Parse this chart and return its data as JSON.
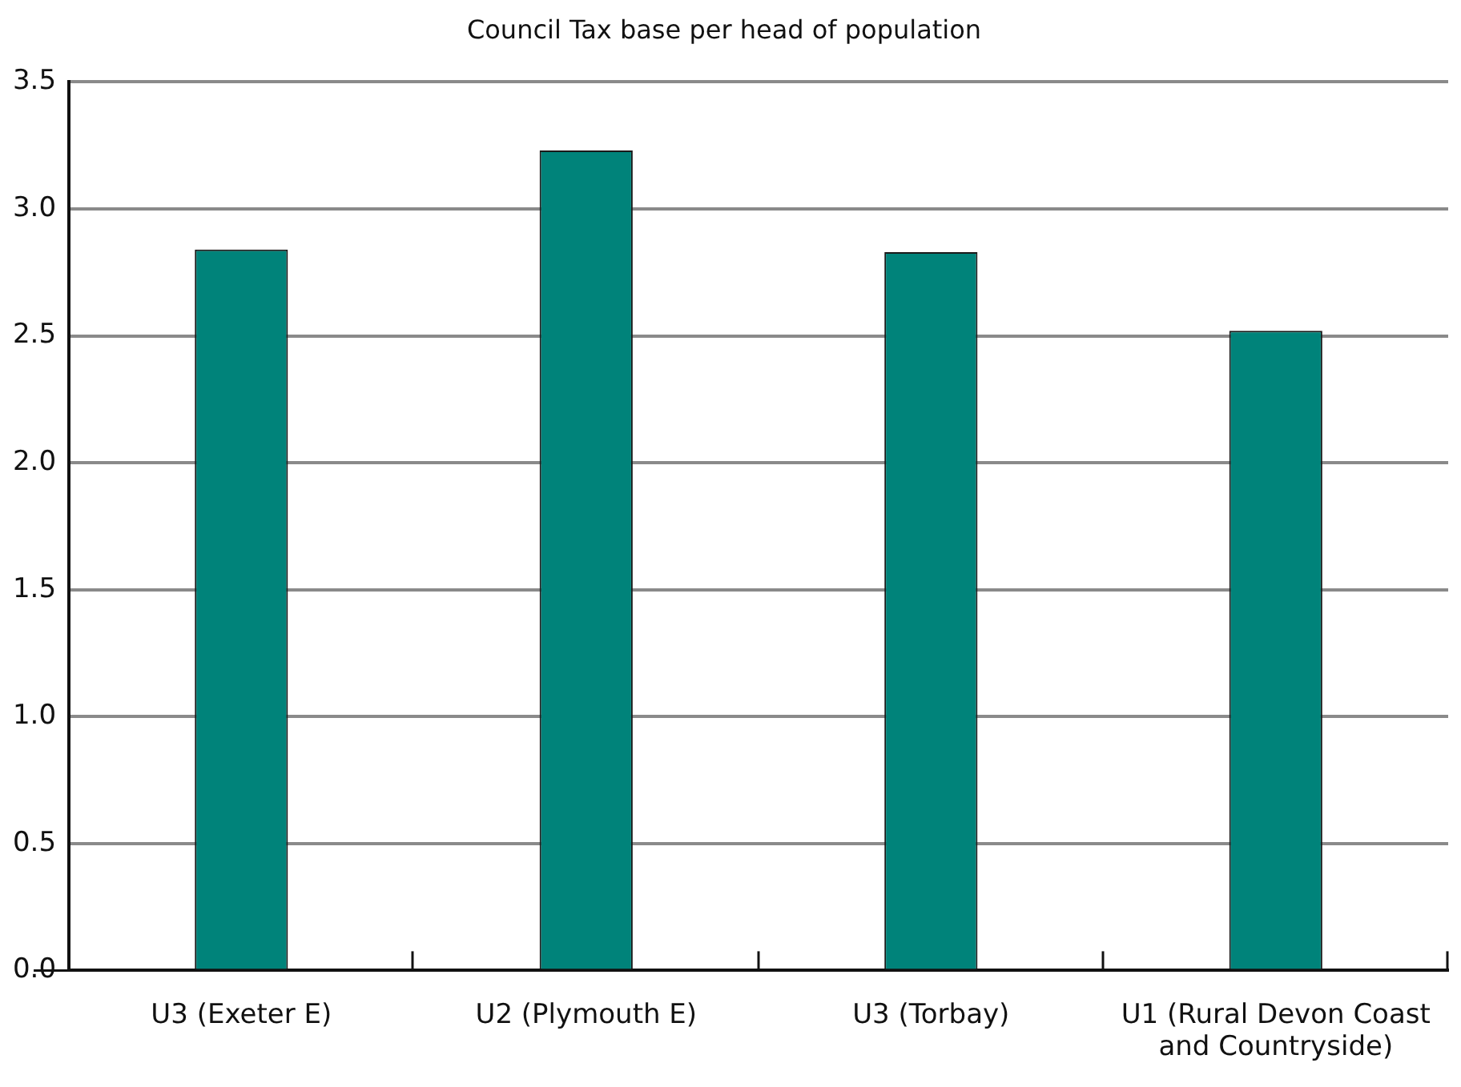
{
  "chart_data": {
    "type": "bar",
    "title": "Council Tax base per head of population",
    "categories": [
      "U3 (Exeter E)",
      "U2 (Plymouth E)",
      "U3 (Torbay)",
      "U1 (Rural Devon Coast and Countryside)"
    ],
    "values": [
      2.84,
      3.23,
      2.83,
      2.52
    ],
    "color": "#00837a",
    "ylim": [
      0,
      3.5
    ],
    "yticks": [
      {
        "value": 0,
        "label": "0.0"
      },
      0.5,
      {
        "value": 1,
        "label": "1.0"
      },
      1.5,
      {
        "value": 2,
        "label": "2.0"
      },
      2.5,
      {
        "value": 3,
        "label": "3.0"
      },
      3.5
    ],
    "grid": "y",
    "legend": false
  }
}
